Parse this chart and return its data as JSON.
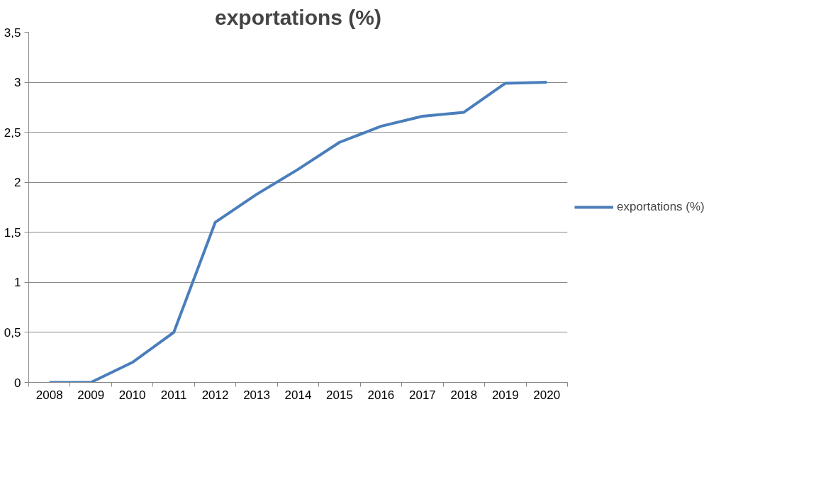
{
  "chart_data": {
    "type": "line",
    "title": "exportations (%)",
    "categories": [
      "2008",
      "2009",
      "2010",
      "2011",
      "2012",
      "2013",
      "2014",
      "2015",
      "2016",
      "2017",
      "2018",
      "2019",
      "2020"
    ],
    "series": [
      {
        "name": "exportations (%)",
        "color": "#4a7ebb",
        "values": [
          0,
          0,
          0.2,
          0.5,
          1.6,
          1.88,
          2.13,
          2.4,
          2.56,
          2.66,
          2.7,
          2.99,
          3.0
        ]
      }
    ],
    "ylim": [
      0,
      3.5
    ],
    "yticks": [
      0,
      {
        "value": 0.5,
        "label": "0,5"
      },
      1,
      {
        "value": 1.5,
        "label": "1,5"
      },
      2,
      {
        "value": 2.5,
        "label": "2,5"
      },
      3,
      {
        "value": 3.5,
        "label": "3,5"
      }
    ],
    "grid": "y",
    "legend": "right",
    "line_style": "solid",
    "marker": "none"
  }
}
